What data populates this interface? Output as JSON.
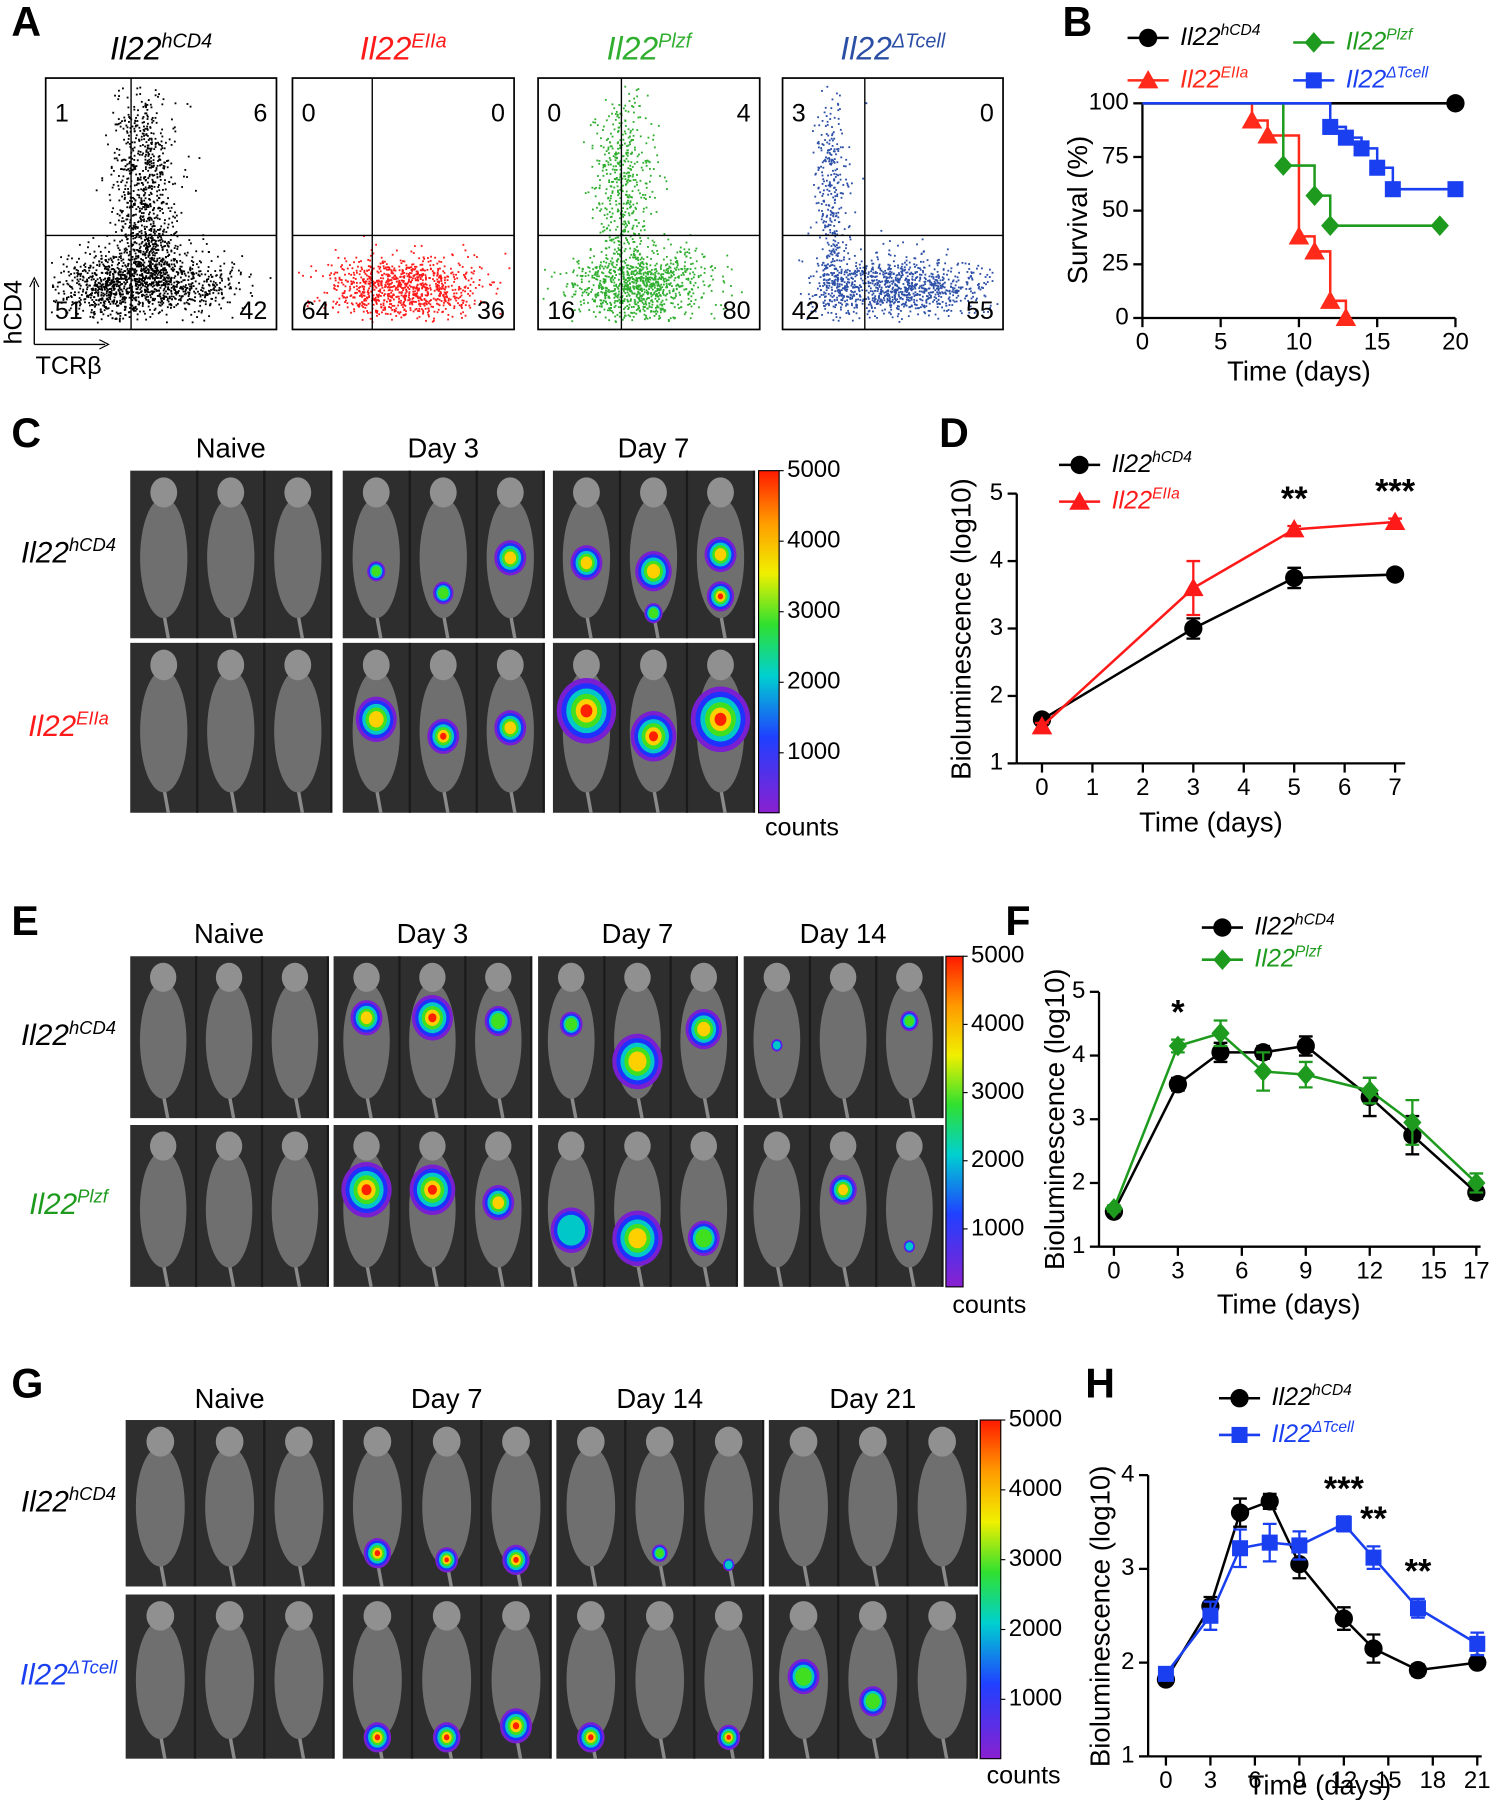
{
  "flow_panel": {
    "label": "A",
    "x_label": "TCRβ",
    "y_label": "hCD4",
    "plots": [
      {
        "name": "Il22hCD4",
        "sup": "hCD4",
        "color": "#000000",
        "quadrants": [
          1,
          6,
          51,
          42
        ]
      },
      {
        "name": "Il22EIIa",
        "sup": "EIIa",
        "color": "#ff1a1a",
        "quadrants": [
          0,
          0,
          64,
          36
        ]
      },
      {
        "name": "Il22Plzf",
        "sup": "Plzf",
        "color": "#2fae2f",
        "quadrants": [
          0,
          4,
          16,
          80
        ]
      },
      {
        "name": "Il22ΔTcell",
        "sup": "ΔTcell",
        "color": "#2c4fa6",
        "quadrants": [
          3,
          0,
          42,
          55
        ]
      }
    ]
  },
  "imaging_panels": [
    {
      "label": "C",
      "columns": [
        "Naive",
        "Day 3",
        "Day 7"
      ],
      "rows": [
        {
          "name": "Il22hCD4",
          "sup": "hCD4",
          "color": "#000000"
        },
        {
          "name": "Il22EIIa",
          "sup": "EIIa",
          "color": "#ff1a1a"
        }
      ],
      "colorbar_lim": [
        150,
        5000
      ],
      "colorbar_ticks": [
        1000,
        2000,
        3000,
        4000,
        5000
      ],
      "colorbar_label": "counts"
    },
    {
      "label": "E",
      "columns": [
        "Naive",
        "Day 3",
        "Day 7",
        "Day 14"
      ],
      "rows": [
        {
          "name": "Il22hCD4",
          "sup": "hCD4",
          "color": "#000000"
        },
        {
          "name": "Il22Plzf",
          "sup": "Plzf",
          "color": "#1e9b1e"
        }
      ],
      "colorbar_lim": [
        150,
        5000
      ],
      "colorbar_ticks": [
        1000,
        2000,
        3000,
        4000,
        5000
      ],
      "colorbar_label": "counts"
    },
    {
      "label": "G",
      "columns": [
        "Naive",
        "Day 7",
        "Day 14",
        "Day 21"
      ],
      "rows": [
        {
          "name": "Il22hCD4",
          "sup": "hCD4",
          "color": "#000000"
        },
        {
          "name": "Il22ΔTcell",
          "sup": "ΔTcell",
          "color": "#1a3ff0"
        }
      ],
      "colorbar_lim": [
        150,
        5000
      ],
      "colorbar_ticks": [
        1000,
        2000,
        3000,
        4000,
        5000
      ],
      "colorbar_label": "counts"
    }
  ],
  "chart_data": [
    {
      "type": "step",
      "panel": "B",
      "x_label": "Time (days)",
      "y_label": "Survival (%)",
      "xlim": [
        0,
        20
      ],
      "xticks": [
        0,
        5,
        10,
        15,
        20
      ],
      "ylim": [
        0,
        100
      ],
      "yticks": [
        0,
        25,
        50,
        75,
        100
      ],
      "series": [
        {
          "name": "Il22hCD4",
          "name_sup": "hCD4",
          "color": "#000000",
          "marker": "circle",
          "x": [
            0,
            20
          ],
          "values": [
            100,
            100
          ]
        },
        {
          "name": "Il22EIIa",
          "name_sup": "EIIa",
          "color": "#ff2a1a",
          "marker": "triangle",
          "x": [
            0,
            7,
            8,
            10,
            11,
            12,
            13
          ],
          "values": [
            100,
            92,
            85,
            38,
            31,
            8,
            0
          ]
        },
        {
          "name": "Il22Plzf",
          "name_sup": "Plzf",
          "color": "#1e9b1e",
          "marker": "diamond",
          "x": [
            0,
            9,
            11,
            12,
            19
          ],
          "values": [
            100,
            71,
            57,
            43,
            43
          ]
        },
        {
          "name": "Il22ΔTcell",
          "name_sup": "ΔTcell",
          "color": "#1a3ff0",
          "marker": "square",
          "x": [
            0,
            12,
            13,
            14,
            15,
            16,
            20
          ],
          "values": [
            100,
            89,
            84,
            79,
            70,
            60,
            60
          ]
        }
      ]
    },
    {
      "type": "line",
      "panel": "D",
      "x_label": "Time (days)",
      "y_label": "Bioluminescence (log10)",
      "x": [
        0,
        3,
        5,
        7
      ],
      "xlim": [
        -0.5,
        7.2
      ],
      "xticks": [
        0,
        1,
        2,
        3,
        4,
        5,
        6,
        7
      ],
      "ylim": [
        1,
        5
      ],
      "yticks": [
        1,
        2,
        3,
        4,
        5
      ],
      "series": [
        {
          "name": "Il22hCD4",
          "name_sup": "hCD4",
          "color": "#000000",
          "marker": "circle",
          "values": [
            1.65,
            3.0,
            3.75,
            3.8
          ],
          "errors": [
            0.05,
            0.15,
            0.15,
            0.05
          ]
        },
        {
          "name": "Il22EIIa",
          "name_sup": "EIIa",
          "color": "#ff1a1a",
          "marker": "triangle",
          "values": [
            1.55,
            3.6,
            4.47,
            4.58
          ],
          "errors": [
            0.05,
            0.4,
            0.05,
            0.05
          ]
        }
      ],
      "annotations": [
        {
          "text": "**",
          "x": 5
        },
        {
          "text": "***",
          "x": 7
        }
      ]
    },
    {
      "type": "line",
      "panel": "F",
      "x_label": "Time (days)",
      "y_label": "Bioluminescence (log10)",
      "x": [
        0,
        3,
        5,
        7,
        9,
        12,
        14,
        17
      ],
      "xlim": [
        -0.7,
        17.2
      ],
      "xticks": [
        0,
        3,
        6,
        9,
        12,
        15,
        17
      ],
      "ylim": [
        1,
        5
      ],
      "yticks": [
        1,
        2,
        3,
        4,
        5
      ],
      "series": [
        {
          "name": "Il22hCD4",
          "name_sup": "hCD4",
          "color": "#000000",
          "marker": "circle",
          "values": [
            1.55,
            3.55,
            4.05,
            4.05,
            4.15,
            3.35,
            2.75,
            1.85
          ],
          "errors": [
            0.05,
            0.1,
            0.15,
            0.1,
            0.15,
            0.3,
            0.3,
            0.1
          ]
        },
        {
          "name": "Il22Plzf",
          "name_sup": "Plzf",
          "color": "#1e9b1e",
          "marker": "diamond",
          "values": [
            1.6,
            4.15,
            4.35,
            3.75,
            3.7,
            3.45,
            2.95,
            2.0
          ],
          "errors": [
            0.05,
            0.1,
            0.2,
            0.3,
            0.2,
            0.2,
            0.35,
            0.15
          ]
        }
      ],
      "annotations": [
        {
          "text": "*",
          "x": 3
        }
      ]
    },
    {
      "type": "line",
      "panel": "H",
      "x_label": "Time (days)",
      "y_label": "Bioluminescence (log10)",
      "x": [
        0,
        3,
        5,
        7,
        9,
        12,
        14,
        17,
        21
      ],
      "xlim": [
        -1.2,
        21.3
      ],
      "xticks": [
        0,
        3,
        6,
        9,
        12,
        15,
        18,
        21
      ],
      "ylim": [
        1,
        4
      ],
      "yticks": [
        1,
        2,
        3,
        4
      ],
      "series": [
        {
          "name": "Il22hCD4",
          "name_sup": "hCD4",
          "color": "#000000",
          "marker": "circle",
          "values": [
            1.82,
            2.6,
            3.6,
            3.72,
            3.05,
            2.47,
            2.15,
            1.92,
            2.0
          ],
          "errors": [
            0.05,
            0.1,
            0.15,
            0.08,
            0.15,
            0.12,
            0.15,
            0.06,
            0.05
          ]
        },
        {
          "name": "Il22ΔTcell",
          "name_sup": "ΔTcell",
          "color": "#1a3ff0",
          "marker": "square",
          "values": [
            1.88,
            2.5,
            3.22,
            3.28,
            3.25,
            3.48,
            3.12,
            2.58,
            2.2
          ],
          "errors": [
            0.05,
            0.15,
            0.2,
            0.2,
            0.15,
            0.08,
            0.12,
            0.1,
            0.12
          ]
        }
      ],
      "annotations": [
        {
          "text": "***",
          "x": 12
        },
        {
          "text": "**",
          "x": 14
        },
        {
          "text": "**",
          "x": 17
        }
      ]
    }
  ]
}
